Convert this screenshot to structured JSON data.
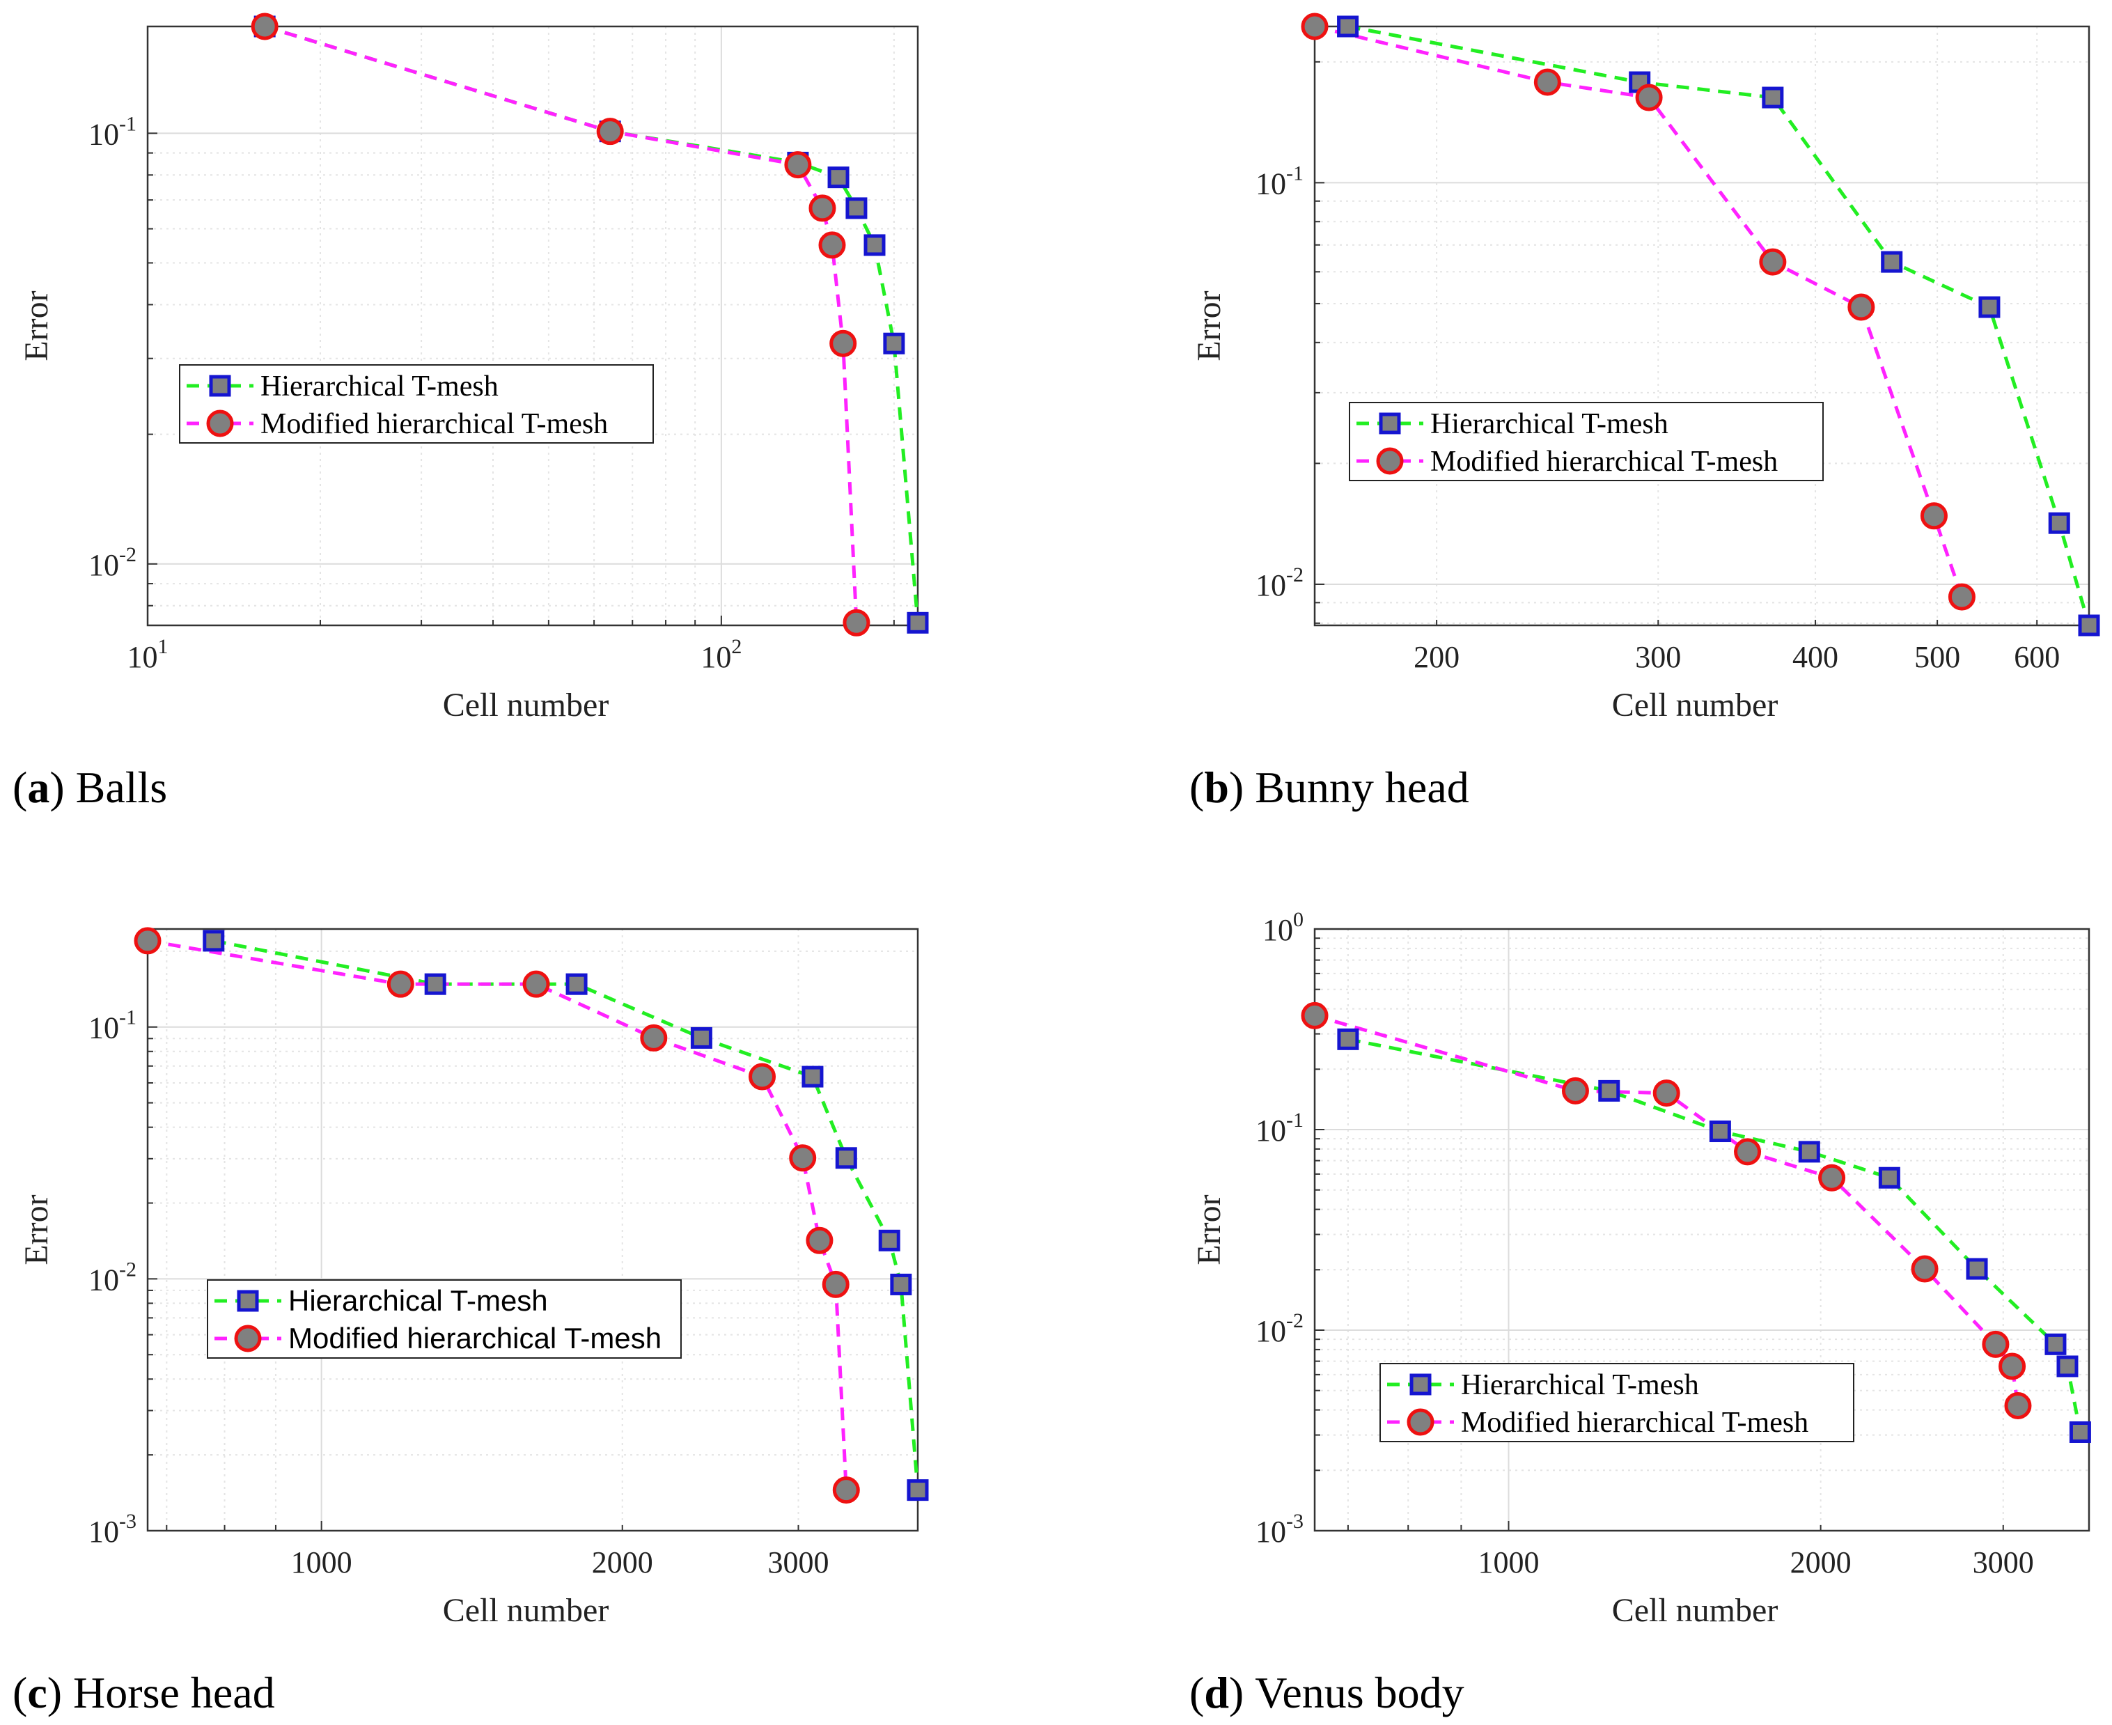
{
  "colors": {
    "hier_line": "#22ee22",
    "hier_edge": "#1515d0",
    "mod_line": "#ff22ff",
    "mod_edge": "#ee1111",
    "marker_fill": "#808080"
  },
  "chart_data": [
    {
      "type": "line",
      "caption_letter": "(a)",
      "caption_text": " Balls",
      "xscale": "log",
      "yscale": "log",
      "xlabel": "Cell number",
      "ylabel": "Error",
      "xlim": [
        10,
        220
      ],
      "ylim": [
        0.0072,
        0.177
      ],
      "x_ticks": [
        {
          "value": 10,
          "base": "10",
          "exp": "1"
        },
        {
          "value": 100,
          "base": "10",
          "exp": "2"
        }
      ],
      "y_ticks": [
        {
          "value": 0.01,
          "base": "10",
          "exp": "-2"
        },
        {
          "value": 0.1,
          "base": "10",
          "exp": "-1"
        }
      ],
      "grid": true,
      "legend_position": "center-left",
      "legend_font": "serif",
      "series": [
        {
          "name": "Hierarchical T-mesh",
          "marker": "square",
          "x": [
            16,
            64,
            136,
            160,
            172,
            185,
            200,
            220
          ],
          "y": [
            0.177,
            0.101,
            0.0855,
            0.079,
            0.067,
            0.055,
            0.0325,
            0.0073
          ]
        },
        {
          "name": "Modified hierarchical T-mesh",
          "marker": "circle",
          "x": [
            16,
            64,
            136,
            150,
            156,
            163,
            172
          ],
          "y": [
            0.177,
            0.101,
            0.0845,
            0.067,
            0.055,
            0.0325,
            0.0073
          ]
        }
      ]
    },
    {
      "type": "line",
      "caption_letter": "(b)",
      "caption_text": " Bunny head",
      "xscale": "log",
      "yscale": "log",
      "xlabel": "Cell number",
      "ylabel": "Error",
      "xlim": [
        160,
        660
      ],
      "ylim": [
        0.0079,
        0.245
      ],
      "x_ticks": [
        {
          "value": 200,
          "label": "200"
        },
        {
          "value": 300,
          "label": "300"
        },
        {
          "value": 400,
          "label": "400"
        },
        {
          "value": 500,
          "label": "500"
        },
        {
          "value": 600,
          "label": "600"
        }
      ],
      "y_ticks": [
        {
          "value": 0.01,
          "base": "10",
          "exp": "-2"
        },
        {
          "value": 0.1,
          "base": "10",
          "exp": "-1"
        }
      ],
      "grid": true,
      "legend_position": "center-left",
      "legend_font": "serif",
      "series": [
        {
          "name": "Hierarchical T-mesh",
          "marker": "square",
          "x": [
            170,
            290,
            370,
            460,
            550,
            625,
            660
          ],
          "y": [
            0.245,
            0.178,
            0.163,
            0.0635,
            0.049,
            0.0142,
            0.0079
          ]
        },
        {
          "name": "Modified hierarchical T-mesh",
          "marker": "circle",
          "x": [
            160,
            245,
            295,
            370,
            435,
            497,
            523
          ],
          "y": [
            0.245,
            0.178,
            0.163,
            0.0635,
            0.049,
            0.0148,
            0.0093
          ]
        }
      ]
    },
    {
      "type": "line",
      "caption_letter": "(c)",
      "caption_text": " Horse head",
      "xscale": "log",
      "yscale": "log",
      "xlabel": "Cell number",
      "ylabel": "Error",
      "xlim": [
        670,
        3950
      ],
      "ylim": [
        0.001,
        0.245
      ],
      "x_ticks": [
        {
          "value": 1000,
          "label": "1000"
        },
        {
          "value": 2000,
          "label": "2000"
        },
        {
          "value": 3000,
          "label": "3000"
        }
      ],
      "y_ticks": [
        {
          "value": 0.001,
          "base": "10",
          "exp": "-3"
        },
        {
          "value": 0.01,
          "base": "10",
          "exp": "-2"
        },
        {
          "value": 0.1,
          "base": "10",
          "exp": "-1"
        }
      ],
      "grid": true,
      "legend_position": "center-left",
      "legend_font": "sans",
      "series": [
        {
          "name": "Hierarchical T-mesh",
          "marker": "square",
          "x": [
            780,
            1300,
            1800,
            2400,
            3100,
            3350,
            3700,
            3800,
            3950
          ],
          "y": [
            0.22,
            0.148,
            0.148,
            0.0905,
            0.0635,
            0.0302,
            0.0142,
            0.0095,
            0.00145
          ]
        },
        {
          "name": "Modified hierarchical T-mesh",
          "marker": "circle",
          "x": [
            670,
            1200,
            1640,
            2150,
            2760,
            3030,
            3150,
            3270,
            3350
          ],
          "y": [
            0.22,
            0.148,
            0.148,
            0.0905,
            0.0635,
            0.0302,
            0.0142,
            0.0095,
            0.00145
          ]
        }
      ]
    },
    {
      "type": "line",
      "caption_letter": "(d)",
      "caption_text": " Venus body",
      "xscale": "log",
      "yscale": "log",
      "xlabel": "Cell number",
      "ylabel": "Error",
      "xlim": [
        650,
        3630
      ],
      "ylim": [
        0.001,
        1.0
      ],
      "x_ticks": [
        {
          "value": 1000,
          "label": "1000"
        },
        {
          "value": 2000,
          "label": "2000"
        },
        {
          "value": 3000,
          "label": "3000"
        }
      ],
      "y_ticks": [
        {
          "value": 0.001,
          "base": "10",
          "exp": "-3"
        },
        {
          "value": 0.01,
          "base": "10",
          "exp": "-2"
        },
        {
          "value": 0.1,
          "base": "10",
          "exp": "-1"
        },
        {
          "value": 1,
          "base": "10",
          "exp": "0"
        }
      ],
      "grid": true,
      "legend_position": "center-left",
      "legend_font": "serif",
      "series": [
        {
          "name": "Hierarchical T-mesh",
          "marker": "square",
          "x": [
            700,
            1250,
            1600,
            1950,
            2330,
            2830,
            3370,
            3460,
            3560
          ],
          "y": [
            0.282,
            0.156,
            0.098,
            0.0775,
            0.0575,
            0.0202,
            0.0085,
            0.0066,
            0.0031
          ]
        },
        {
          "name": "Modified hierarchical T-mesh",
          "marker": "circle",
          "x": [
            650,
            1160,
            1420,
            1700,
            2050,
            2520,
            2950,
            3060,
            3100
          ],
          "y": [
            0.37,
            0.156,
            0.152,
            0.0775,
            0.0575,
            0.0202,
            0.0085,
            0.0066,
            0.0042
          ]
        }
      ]
    }
  ]
}
